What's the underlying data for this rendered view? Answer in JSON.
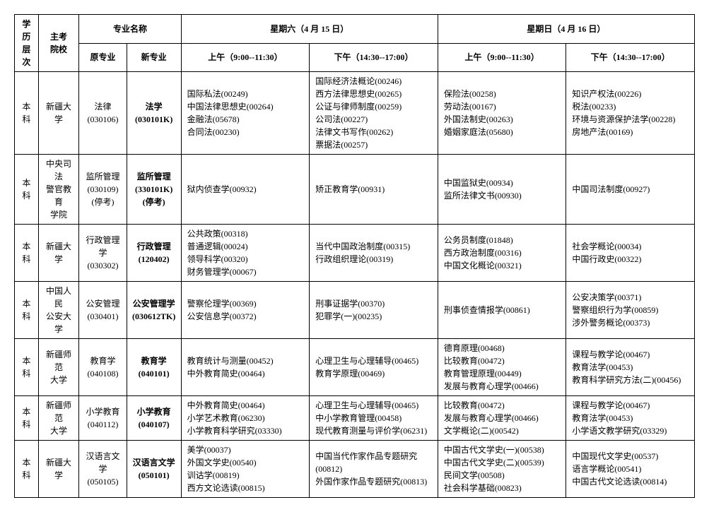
{
  "headers": {
    "level": "学历\n层次",
    "school": "主考\n院校",
    "major_name": "专业名称",
    "old_major": "原专业",
    "new_major": "新专业",
    "sat": "星期六（4 月 15 日）",
    "sun": "星期日（4 月 16 日）",
    "am": "上午（9:00--11:30）",
    "pm": "下午（14:30--17:00）"
  },
  "rows": [
    {
      "level": "本科",
      "school": "新疆大学",
      "old_major": "法律\n(030106)",
      "new_major": "法学\n(030101K)",
      "sat_am": "国际私法(00249)\n中国法律思想史(00264)\n金融法(05678)\n合同法(00230)",
      "sat_pm": "国际经济法概论(00246)\n西方法律思想史(00265)\n公证与律师制度(00259)\n公司法(00227)\n法律文书写作(00262)\n票据法(00257)",
      "sun_am": "保险法(00258)\n劳动法(00167)\n外国法制史(00263)\n婚姻家庭法(05680)",
      "sun_pm": "知识产权法(00226)\n税法(00233)\n环境与资源保护法学(00228)\n房地产法(00169)"
    },
    {
      "level": "本科",
      "school": "中央司法\n警官教育\n学院",
      "old_major": "监所管理\n(030109)\n(停考)",
      "new_major": "监所管理\n(330101K)\n(停考)",
      "sat_am": "狱内侦查学(00932)",
      "sat_pm": "矫正教育学(00931)",
      "sun_am": "中国监狱史(00934)\n监所法律文书(00930)",
      "sun_pm": "中国司法制度(00927)"
    },
    {
      "level": "本科",
      "school": "新疆大学",
      "old_major": "行政管理学\n(030302)",
      "new_major": "行政管理\n(120402)",
      "sat_am": "公共政策(00318)\n普通逻辑(00024)\n领导科学(00320)\n财务管理学(00067)",
      "sat_pm": "当代中国政治制度(00315)\n行政组织理论(00319)",
      "sun_am": "公务员制度(01848)\n西方政治制度(00316)\n中国文化概论(00321)",
      "sun_pm": "社会学概论(00034)\n中国行政史(00322)"
    },
    {
      "level": "本科",
      "school": "中国人民\n公安大学",
      "old_major": "公安管理\n(030401)",
      "new_major": "公安管理学\n(030612TK)",
      "sat_am": "警察伦理学(00369)\n公安信息学(00372)",
      "sat_pm": "刑事证据学(00370)\n犯罪学(一)(00235)",
      "sun_am": "刑事侦查情报学(00861)",
      "sun_pm": "公安决策学(00371)\n警察组织行为学(00859)\n涉外警务概论(00373)"
    },
    {
      "level": "本科",
      "school": "新疆师范\n大学",
      "old_major": "教育学\n(040108)",
      "new_major": "教育学\n(040101)",
      "sat_am": "教育统计与测量(00452)\n中外教育简史(00464)",
      "sat_pm": "心理卫生与心理辅导(00465)\n教育学原理(00469)",
      "sun_am": "德育原理(00468)\n比较教育(00472)\n教育管理原理(00449)\n发展与教育心理学(00466)",
      "sun_pm": "课程与教学论(00467)\n教育法学(00453)\n教育科学研究方法(二)(00456)"
    },
    {
      "level": "本科",
      "school": "新疆师范\n大学",
      "old_major": "小学教育\n(040112)",
      "new_major": "小学教育\n(040107)",
      "sat_am": "中外教育简史(00464)\n小学艺术教育(06230)\n小学教育科学研究(03330)",
      "sat_pm": "心理卫生与心理辅导(00465)\n中小学教育管理(00458)\n现代教育测量与评价学(06231)",
      "sun_am": "比较教育(00472)\n发展与教育心理学(00466)\n文学概论(二)(00542)",
      "sun_pm": "课程与教学论(00467)\n教育法学(00453)\n小学语文教学研究(03329)"
    },
    {
      "level": "本科",
      "school": "新疆大学",
      "old_major": "汉语言文学\n(050105)",
      "new_major": "汉语言文学\n(050101)",
      "sat_am": "美学(00037)\n外国文学史(00540)\n训诂学(00819)\n西方文论选读(00815)",
      "sat_pm": "中国当代作家作品专题研究(00812)\n外国作家作品专题研究(00813)",
      "sun_am": "中国古代文学史(一)(00538)\n中国古代文学史(二)(00539)\n民间文学(00508)\n社会科学基础(00823)",
      "sun_pm": "中国现代文学史(00537)\n语言学概论(00541)\n中国古代文论选读(00814)"
    }
  ]
}
